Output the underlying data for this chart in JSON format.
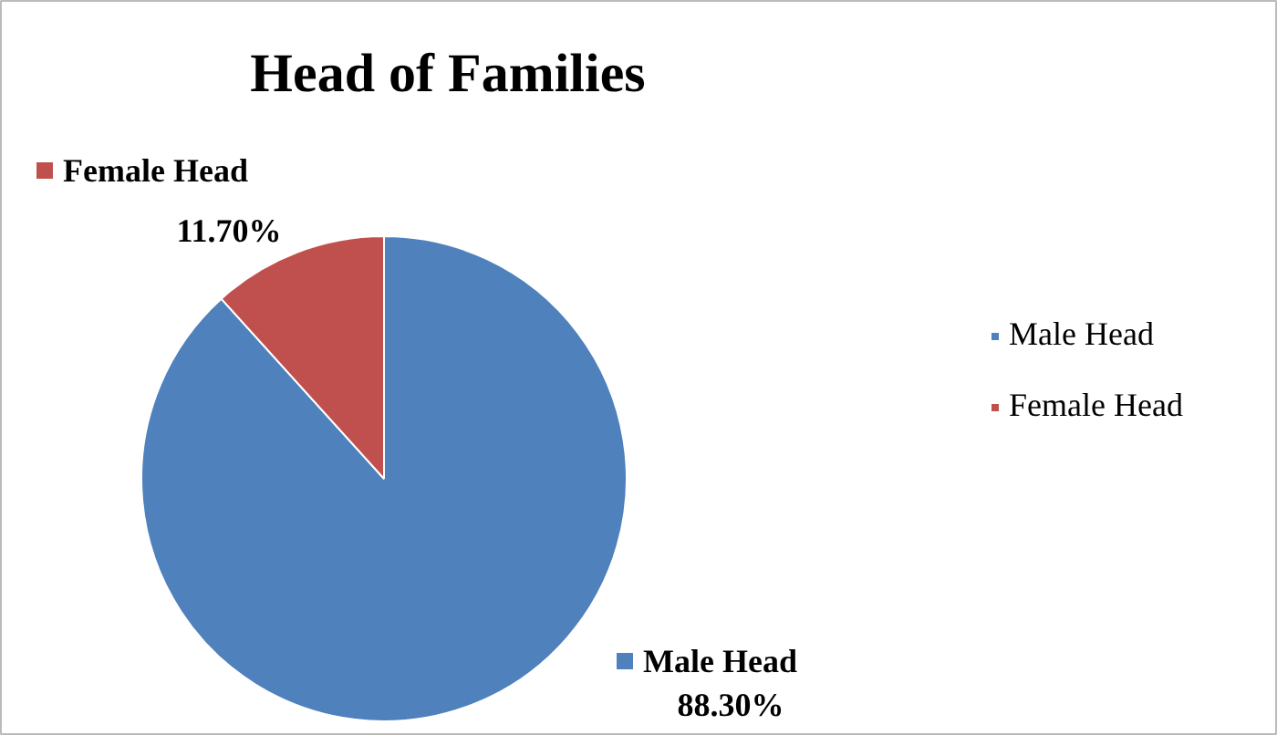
{
  "chart_data": {
    "type": "pie",
    "title": "Head of Families",
    "categories": [
      "Male Head",
      "Female Head"
    ],
    "values": [
      88.3,
      11.7
    ],
    "colors": [
      "#4f81bd",
      "#c0504d"
    ],
    "value_labels": [
      "88.30%",
      "11.70%"
    ],
    "legend": "right"
  }
}
